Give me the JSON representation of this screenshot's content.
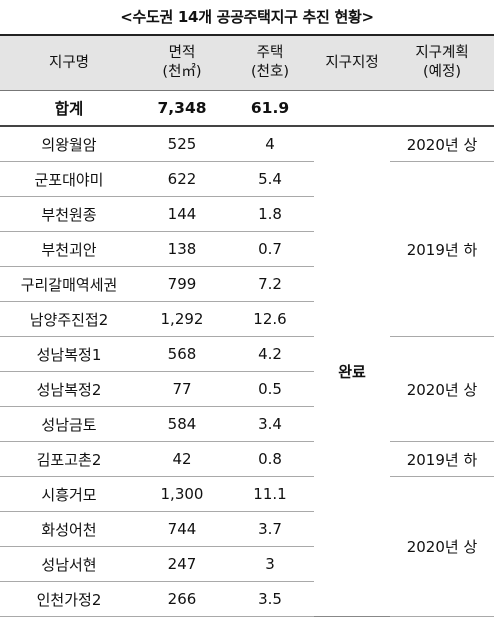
{
  "title": "<수도권 14개 공공주택지구 추진 현황>",
  "headers": {
    "name": "지구명",
    "area": "면적",
    "area_unit": "(천㎡)",
    "housing": "주택",
    "housing_unit": "(천호)",
    "designation": "지구지정",
    "plan": "지구계획",
    "plan_sub": "(예정)"
  },
  "total": {
    "name": "합계",
    "area": "7,348",
    "housing": "61.9"
  },
  "rows": [
    {
      "name": "의왕월암",
      "area": "525",
      "housing": "4"
    },
    {
      "name": "군포대야미",
      "area": "622",
      "housing": "5.4"
    },
    {
      "name": "부천원종",
      "area": "144",
      "housing": "1.8"
    },
    {
      "name": "부천괴안",
      "area": "138",
      "housing": "0.7"
    },
    {
      "name": "구리갈매역세권",
      "area": "799",
      "housing": "7.2"
    },
    {
      "name": "남양주진접2",
      "area": "1,292",
      "housing": "12.6"
    },
    {
      "name": "성남복정1",
      "area": "568",
      "housing": "4.2"
    },
    {
      "name": "성남복정2",
      "area": "77",
      "housing": "0.5"
    },
    {
      "name": "성남금토",
      "area": "584",
      "housing": "3.4"
    },
    {
      "name": "김포고촌2",
      "area": "42",
      "housing": "0.8"
    },
    {
      "name": "시흥거모",
      "area": "1,300",
      "housing": "11.1"
    },
    {
      "name": "화성어천",
      "area": "744",
      "housing": "3.7"
    },
    {
      "name": "성남서현",
      "area": "247",
      "housing": "3"
    },
    {
      "name": "인천가정2",
      "area": "266",
      "housing": "3.5"
    }
  ],
  "designation_status": "완료",
  "plan_groups": [
    "2020년 상",
    "2019년 하",
    "2020년 상",
    "2019년 하",
    "2020년 상"
  ]
}
